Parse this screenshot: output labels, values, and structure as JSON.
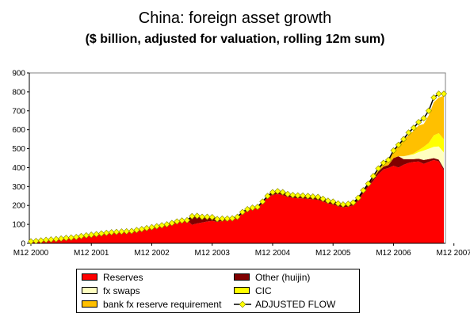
{
  "chart_data": {
    "type": "area",
    "title": "China: foreign asset growth",
    "subtitle": "($ billion, adjusted for valuation, rolling 12m sum)",
    "xlabel": "",
    "ylabel": "",
    "ylim": [
      0,
      900
    ],
    "yticks": [
      "0",
      "100",
      "200",
      "300",
      "400",
      "500",
      "600",
      "700",
      "800",
      "900"
    ],
    "xticks": [
      "M12 2000",
      "M12 2001",
      "M12 2002",
      "M12 2003",
      "M12 2004",
      "M12 2005",
      "M12 2006",
      "M12 2007"
    ],
    "x": [
      2000.9167,
      2001.0,
      2001.0833,
      2001.1667,
      2001.25,
      2001.3333,
      2001.4167,
      2001.5,
      2001.5833,
      2001.6667,
      2001.75,
      2001.8333,
      2001.9167,
      2002.0,
      2002.0833,
      2002.1667,
      2002.25,
      2002.3333,
      2002.4167,
      2002.5,
      2002.5833,
      2002.6667,
      2002.75,
      2002.8333,
      2002.9167,
      2003.0,
      2003.0833,
      2003.1667,
      2003.25,
      2003.3333,
      2003.4167,
      2003.5,
      2003.5833,
      2003.6667,
      2003.75,
      2003.8333,
      2003.9167,
      2004.0,
      2004.0833,
      2004.1667,
      2004.25,
      2004.3333,
      2004.4167,
      2004.5,
      2004.5833,
      2004.6667,
      2004.75,
      2004.8333,
      2004.9167,
      2005.0,
      2005.0833,
      2005.1667,
      2005.25,
      2005.3333,
      2005.4167,
      2005.5,
      2005.5833,
      2005.6667,
      2005.75,
      2005.8333,
      2005.9167,
      2006.0,
      2006.0833,
      2006.1667,
      2006.25,
      2006.3333,
      2006.4167,
      2006.5,
      2006.5833,
      2006.6667,
      2006.75,
      2006.8333,
      2006.9167,
      2007.0,
      2007.0833,
      2007.1667,
      2007.25,
      2007.3333,
      2007.4167,
      2007.5,
      2007.5833,
      2007.6667,
      2007.75
    ],
    "series": [
      {
        "name": "Reserves",
        "color": "#ff0000",
        "values": [
          10,
          12,
          15,
          18,
          20,
          22,
          25,
          28,
          30,
          33,
          38,
          42,
          45,
          48,
          52,
          55,
          58,
          60,
          62,
          63,
          65,
          70,
          75,
          80,
          85,
          90,
          95,
          100,
          107,
          115,
          120,
          122,
          98,
          105,
          110,
          115,
          118,
          113,
          118,
          122,
          127,
          135,
          160,
          175,
          183,
          187,
          215,
          245,
          255,
          260,
          255,
          245,
          240,
          238,
          237,
          235,
          232,
          230,
          220,
          210,
          205,
          195,
          190,
          193,
          200,
          225,
          265,
          300,
          330,
          365,
          390,
          398,
          410,
          400,
          415,
          425,
          430,
          432,
          420,
          430,
          440,
          432,
          385
        ]
      },
      {
        "name": "Other (huijin)",
        "color": "#800000",
        "values": [
          0,
          0,
          0,
          0,
          0,
          0,
          0,
          0,
          0,
          0,
          0,
          0,
          0,
          0,
          0,
          0,
          0,
          0,
          0,
          0,
          0,
          0,
          0,
          0,
          0,
          0,
          0,
          0,
          0,
          0,
          0,
          0,
          45,
          40,
          30,
          25,
          20,
          15,
          12,
          8,
          5,
          5,
          5,
          5,
          5,
          5,
          5,
          5,
          15,
          15,
          15,
          15,
          15,
          15,
          15,
          15,
          15,
          15,
          15,
          15,
          15,
          15,
          15,
          15,
          15,
          15,
          15,
          15,
          15,
          15,
          15,
          15,
          40,
          60,
          30,
          20,
          15,
          15,
          20,
          15,
          10,
          10,
          10
        ]
      },
      {
        "name": "fx swaps",
        "color": "#ffffc0",
        "values": [
          0,
          0,
          0,
          0,
          0,
          0,
          0,
          0,
          0,
          0,
          0,
          0,
          0,
          0,
          0,
          0,
          0,
          0,
          0,
          0,
          0,
          0,
          0,
          0,
          0,
          0,
          0,
          0,
          0,
          0,
          0,
          0,
          0,
          0,
          0,
          0,
          0,
          0,
          0,
          0,
          0,
          0,
          0,
          0,
          0,
          0,
          0,
          0,
          0,
          0,
          0,
          0,
          0,
          0,
          0,
          0,
          0,
          0,
          0,
          0,
          0,
          0,
          0,
          0,
          0,
          0,
          0,
          0,
          0,
          0,
          0,
          0,
          0,
          0,
          15,
          20,
          25,
          35,
          50,
          55,
          60,
          70,
          85
        ]
      },
      {
        "name": "CIC",
        "color": "#ffff00",
        "values": [
          0,
          0,
          0,
          0,
          0,
          0,
          0,
          0,
          0,
          0,
          0,
          0,
          0,
          0,
          0,
          0,
          0,
          0,
          0,
          0,
          0,
          0,
          0,
          0,
          0,
          0,
          0,
          0,
          0,
          0,
          0,
          0,
          0,
          0,
          0,
          0,
          0,
          0,
          0,
          0,
          0,
          0,
          0,
          0,
          0,
          0,
          0,
          0,
          0,
          0,
          0,
          0,
          0,
          0,
          0,
          0,
          0,
          0,
          0,
          0,
          0,
          0,
          0,
          0,
          0,
          0,
          0,
          0,
          0,
          0,
          0,
          0,
          0,
          0,
          0,
          0,
          5,
          10,
          20,
          30,
          60,
          70,
          70
        ]
      },
      {
        "name": "bank fx reserve requirement",
        "color": "#ffc000",
        "values": [
          0,
          0,
          0,
          0,
          0,
          0,
          0,
          0,
          0,
          0,
          0,
          0,
          0,
          0,
          0,
          0,
          0,
          0,
          0,
          0,
          0,
          0,
          0,
          0,
          0,
          0,
          0,
          0,
          0,
          0,
          0,
          0,
          0,
          0,
          0,
          0,
          0,
          0,
          0,
          0,
          0,
          0,
          0,
          0,
          0,
          0,
          0,
          0,
          0,
          0,
          0,
          0,
          0,
          0,
          0,
          0,
          0,
          0,
          0,
          0,
          0,
          0,
          0,
          0,
          0,
          0,
          0,
          0,
          10,
          15,
          20,
          27,
          40,
          60,
          90,
          105,
          120,
          130,
          120,
          145,
          175,
          188,
          230
        ]
      },
      {
        "name": "ADJUSTED FLOW",
        "color": "#ffff00",
        "line_color": "#000000",
        "marker": "diamond",
        "values": [
          10,
          12,
          15,
          18,
          20,
          22,
          25,
          28,
          30,
          33,
          38,
          42,
          45,
          48,
          52,
          55,
          58,
          60,
          62,
          63,
          65,
          70,
          75,
          80,
          85,
          90,
          95,
          100,
          107,
          115,
          120,
          122,
          143,
          145,
          140,
          140,
          138,
          128,
          130,
          130,
          132,
          140,
          165,
          180,
          188,
          192,
          220,
          250,
          270,
          275,
          270,
          260,
          255,
          253,
          252,
          250,
          247,
          245,
          235,
          225,
          220,
          210,
          205,
          208,
          215,
          240,
          280,
          315,
          355,
          395,
          425,
          440,
          490,
          520,
          550,
          585,
          610,
          640,
          660,
          700,
          770,
          790,
          790
        ]
      }
    ],
    "grid": false,
    "legend_position": "bottom"
  }
}
